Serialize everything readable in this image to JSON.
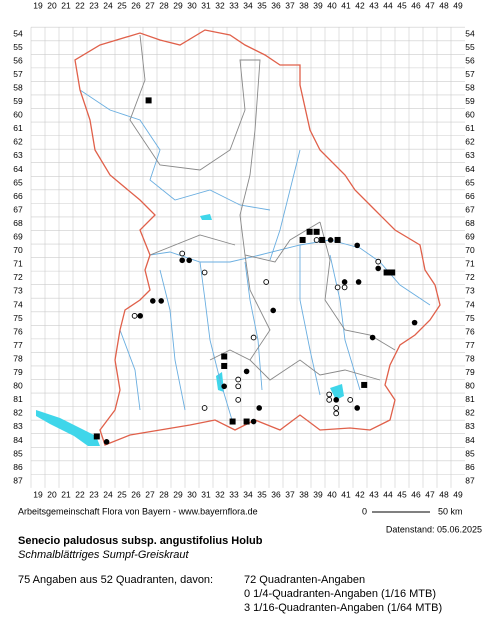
{
  "map": {
    "columns": [
      19,
      20,
      21,
      22,
      23,
      24,
      25,
      26,
      27,
      28,
      29,
      30,
      31,
      32,
      33,
      34,
      35,
      36,
      37,
      38,
      39,
      40,
      41,
      42,
      43,
      44,
      45,
      46,
      47,
      48,
      49
    ],
    "rows": [
      54,
      55,
      56,
      57,
      58,
      59,
      60,
      61,
      62,
      63,
      64,
      65,
      66,
      67,
      68,
      69,
      70,
      71,
      72,
      73,
      74,
      75,
      76,
      77,
      78,
      79,
      80,
      81,
      82,
      83,
      84,
      85,
      86,
      87
    ],
    "points": [
      {
        "col": 26.9,
        "row": 58.9,
        "symbol": "square"
      },
      {
        "col": 38.4,
        "row": 68.6,
        "symbol": "square"
      },
      {
        "col": 38.9,
        "row": 68.6,
        "symbol": "square"
      },
      {
        "col": 37.9,
        "row": 69.2,
        "symbol": "square"
      },
      {
        "col": 39.3,
        "row": 69.2,
        "symbol": "square"
      },
      {
        "col": 40.4,
        "row": 69.2,
        "symbol": "square"
      },
      {
        "col": 43.9,
        "row": 71.6,
        "symbol": "square"
      },
      {
        "col": 44.3,
        "row": 71.6,
        "symbol": "square"
      },
      {
        "col": 32.3,
        "row": 77.8,
        "symbol": "square"
      },
      {
        "col": 32.3,
        "row": 78.5,
        "symbol": "square"
      },
      {
        "col": 42.3,
        "row": 79.9,
        "symbol": "square"
      },
      {
        "col": 32.9,
        "row": 82.6,
        "symbol": "square"
      },
      {
        "col": 33.9,
        "row": 82.6,
        "symbol": "square"
      },
      {
        "col": 23.2,
        "row": 83.7,
        "symbol": "square"
      },
      {
        "col": 29.3,
        "row": 70.7,
        "symbol": "dot"
      },
      {
        "col": 29.8,
        "row": 70.7,
        "symbol": "dot"
      },
      {
        "col": 27.2,
        "row": 73.7,
        "symbol": "dot"
      },
      {
        "col": 27.8,
        "row": 73.7,
        "symbol": "dot"
      },
      {
        "col": 26.3,
        "row": 74.8,
        "symbol": "dot"
      },
      {
        "col": 35.8,
        "row": 74.4,
        "symbol": "dot"
      },
      {
        "col": 40.9,
        "row": 72.3,
        "symbol": "dot"
      },
      {
        "col": 41.9,
        "row": 72.3,
        "symbol": "dot"
      },
      {
        "col": 41.8,
        "row": 69.6,
        "symbol": "dot"
      },
      {
        "col": 39.9,
        "row": 69.2,
        "symbol": "dot"
      },
      {
        "col": 43.3,
        "row": 71.3,
        "symbol": "dot"
      },
      {
        "col": 32.3,
        "row": 80.0,
        "symbol": "dot"
      },
      {
        "col": 33.9,
        "row": 78.9,
        "symbol": "dot"
      },
      {
        "col": 34.4,
        "row": 82.6,
        "symbol": "dot"
      },
      {
        "col": 34.8,
        "row": 81.6,
        "symbol": "dot"
      },
      {
        "col": 40.3,
        "row": 81.0,
        "symbol": "dot"
      },
      {
        "col": 41.8,
        "row": 81.6,
        "symbol": "dot"
      },
      {
        "col": 23.9,
        "row": 84.1,
        "symbol": "dot"
      },
      {
        "col": 45.9,
        "row": 75.3,
        "symbol": "dot"
      },
      {
        "col": 42.9,
        "row": 76.4,
        "symbol": "dot"
      },
      {
        "col": 29.3,
        "row": 70.2,
        "symbol": "ring"
      },
      {
        "col": 30.9,
        "row": 71.6,
        "symbol": "ring"
      },
      {
        "col": 35.3,
        "row": 72.3,
        "symbol": "ring"
      },
      {
        "col": 40.4,
        "row": 72.7,
        "symbol": "ring"
      },
      {
        "col": 40.9,
        "row": 72.7,
        "symbol": "ring"
      },
      {
        "col": 43.3,
        "row": 70.8,
        "symbol": "ring"
      },
      {
        "col": 25.9,
        "row": 74.8,
        "symbol": "ring"
      },
      {
        "col": 33.3,
        "row": 79.5,
        "symbol": "ring"
      },
      {
        "col": 33.3,
        "row": 80.0,
        "symbol": "ring"
      },
      {
        "col": 33.3,
        "row": 81.0,
        "symbol": "ring"
      },
      {
        "col": 34.4,
        "row": 76.4,
        "symbol": "ring"
      },
      {
        "col": 30.9,
        "row": 81.6,
        "symbol": "ring"
      },
      {
        "col": 39.8,
        "row": 80.6,
        "symbol": "ring"
      },
      {
        "col": 39.8,
        "row": 81.0,
        "symbol": "ring"
      },
      {
        "col": 40.3,
        "row": 81.6,
        "symbol": "ring"
      },
      {
        "col": 40.3,
        "row": 82.0,
        "symbol": "ring"
      },
      {
        "col": 41.3,
        "row": 81.0,
        "symbol": "ring"
      },
      {
        "col": 38.9,
        "row": 69.2,
        "symbol": "ring"
      }
    ]
  },
  "footer": {
    "credit": "Arbeitsgemeinschaft Flora von Bayern - www.bayernflora.de",
    "scale_start": "0",
    "scale_end": "50 km",
    "data_date": "Datenstand: 05.06.2025"
  },
  "species": {
    "name": "Senecio paludosus subsp. angustifolius Holub",
    "common_name": "Schmalblättriges Sumpf-Greiskraut"
  },
  "summary": {
    "total": "75 Angaben aus 52 Quadranten, davon:",
    "quadrant": "72 Quadranten-Angaben",
    "quarter": "0 1/4-Quadranten-Angaben (1/16 MTB)",
    "sixteenth": "3 1/16-Quadranten-Angaben (1/64 MTB)"
  }
}
